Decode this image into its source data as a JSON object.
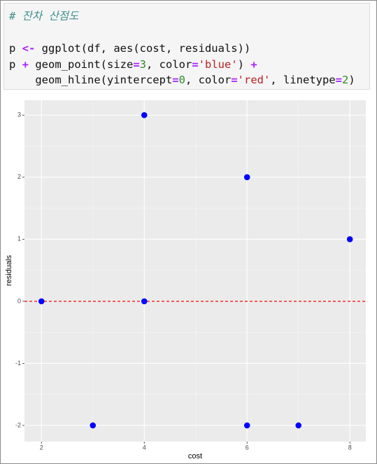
{
  "code": {
    "lines": [
      [
        "# 잔차 산점도"
      ],
      [
        "p ",
        "<-",
        " ggplot(df, aes(cost, residuals))"
      ],
      [
        "p ",
        "+",
        " geom_point(size",
        "=",
        "3",
        ", color",
        "=",
        "'blue'",
        ") ",
        "+"
      ],
      [
        "    geom_hline(yintercept",
        "=",
        "0",
        ", color",
        "=",
        "'red'",
        ", linetype",
        "=",
        "2",
        ")"
      ]
    ]
  },
  "chart_data": {
    "type": "scatter",
    "xlabel": "cost",
    "ylabel": "residuals",
    "x": [
      2,
      3,
      4,
      4,
      6,
      6,
      7,
      8
    ],
    "y": [
      0,
      -2,
      3,
      0,
      2,
      -2,
      -2,
      1
    ],
    "color": "blue",
    "xlim": [
      1.67,
      8.31
    ],
    "ylim": [
      -2.26,
      3.24
    ],
    "xticks": [
      2,
      4,
      6,
      8
    ],
    "yticks": [
      -2,
      -1,
      0,
      1,
      2,
      3
    ],
    "hline": {
      "y": 0,
      "color": "red"
    },
    "grid": true
  }
}
